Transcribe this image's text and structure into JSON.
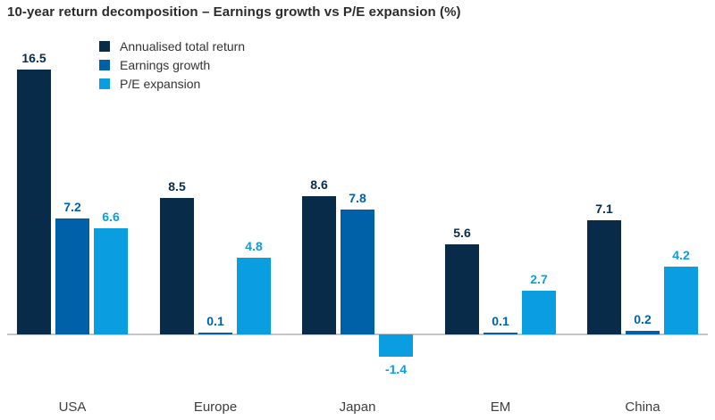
{
  "title": "10-year return decomposition – Earnings growth vs P/E expansion (%)",
  "legend": {
    "position": "top-left-inside",
    "items": [
      {
        "label": "Annualised total return",
        "color": "#072B49"
      },
      {
        "label": "Earnings growth",
        "color": "#0061A8"
      },
      {
        "label": "P/E expansion",
        "color": "#0A9EE1"
      }
    ]
  },
  "colors": {
    "annualised_total_return": "#072B49",
    "earnings_growth": "#0061A8",
    "pe_expansion": "#0A9EE1",
    "axis_line": "#c4c4c4",
    "title_text": "#2b2b2b",
    "category_text": "#3d3d3d"
  },
  "chart_data": {
    "type": "bar",
    "title": "10-year return decomposition – Earnings growth vs P/E expansion (%)",
    "categories": [
      "USA",
      "Europe",
      "Japan",
      "EM",
      "China"
    ],
    "series": [
      {
        "name": "Annualised total return",
        "key": "annualised-total-return",
        "color": "#072B49",
        "values": [
          16.5,
          8.5,
          8.6,
          5.6,
          7.1
        ]
      },
      {
        "name": "Earnings growth",
        "key": "earnings-growth",
        "color": "#0061A8",
        "values": [
          7.2,
          0.1,
          7.8,
          0.1,
          0.2
        ]
      },
      {
        "name": "P/E expansion",
        "key": "pe-expansion",
        "color": "#0A9EE1",
        "values": [
          6.6,
          4.8,
          -1.4,
          2.7,
          4.2
        ]
      }
    ],
    "value_labels": [
      "16.5",
      "7.2",
      "6.6",
      "8.5",
      "0.1",
      "4.8",
      "8.6",
      "7.8",
      "-1.4",
      "5.6",
      "0.1",
      "2.7",
      "7.1",
      "0.2",
      "4.2"
    ],
    "xlabel": "",
    "ylabel": "",
    "ylim": [
      -2,
      17
    ],
    "grid": false,
    "baseline": 0,
    "legend_position": "top-left-inside"
  }
}
